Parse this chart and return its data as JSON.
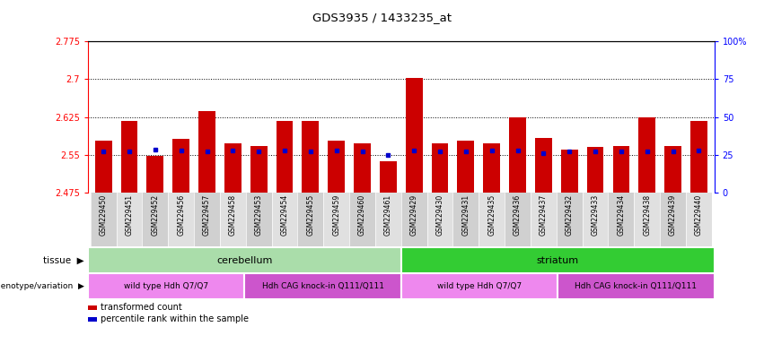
{
  "title": "GDS3935 / 1433235_at",
  "samples": [
    "GSM229450",
    "GSM229451",
    "GSM229452",
    "GSM229456",
    "GSM229457",
    "GSM229458",
    "GSM229453",
    "GSM229454",
    "GSM229455",
    "GSM229459",
    "GSM229460",
    "GSM229461",
    "GSM229429",
    "GSM229430",
    "GSM229431",
    "GSM229435",
    "GSM229436",
    "GSM229437",
    "GSM229432",
    "GSM229433",
    "GSM229434",
    "GSM229438",
    "GSM229439",
    "GSM229440"
  ],
  "bar_values": [
    2.578,
    2.618,
    2.548,
    2.582,
    2.636,
    2.573,
    2.568,
    2.618,
    2.618,
    2.578,
    2.573,
    2.538,
    2.703,
    2.573,
    2.578,
    2.572,
    2.625,
    2.583,
    2.56,
    2.565,
    2.568,
    2.625,
    2.568,
    2.618
  ],
  "percentile_values": [
    2.557,
    2.557,
    2.56,
    2.558,
    2.557,
    2.558,
    2.557,
    2.558,
    2.557,
    2.558,
    2.557,
    2.55,
    2.558,
    2.557,
    2.557,
    2.558,
    2.558,
    2.553,
    2.557,
    2.557,
    2.557,
    2.557,
    2.557,
    2.558
  ],
  "ymin": 2.475,
  "ymax": 2.775,
  "yticks": [
    2.475,
    2.55,
    2.625,
    2.7,
    2.775
  ],
  "ytick_labels": [
    "2.475",
    "2.55",
    "2.625",
    "2.7",
    "2.775"
  ],
  "right_yticks": [
    0,
    25,
    50,
    75,
    100
  ],
  "right_ytick_labels": [
    "0",
    "25",
    "50",
    "75",
    "100%"
  ],
  "hlines": [
    2.55,
    2.625,
    2.7
  ],
  "bar_color": "#cc0000",
  "percentile_color": "#0000cc",
  "tissue_groups": [
    {
      "label": "cerebellum",
      "start": 0,
      "end": 11,
      "color": "#aaddaa"
    },
    {
      "label": "striatum",
      "start": 12,
      "end": 23,
      "color": "#33cc33"
    }
  ],
  "genotype_groups": [
    {
      "label": "wild type Hdh Q7/Q7",
      "start": 0,
      "end": 5,
      "color": "#ee88ee"
    },
    {
      "label": "Hdh CAG knock-in Q111/Q111",
      "start": 6,
      "end": 11,
      "color": "#cc55cc"
    },
    {
      "label": "wild type Hdh Q7/Q7",
      "start": 12,
      "end": 17,
      "color": "#ee88ee"
    },
    {
      "label": "Hdh CAG knock-in Q111/Q111",
      "start": 18,
      "end": 23,
      "color": "#cc55cc"
    }
  ],
  "legend_items": [
    {
      "label": "transformed count",
      "color": "#cc0000"
    },
    {
      "label": "percentile rank within the sample",
      "color": "#0000cc"
    }
  ]
}
